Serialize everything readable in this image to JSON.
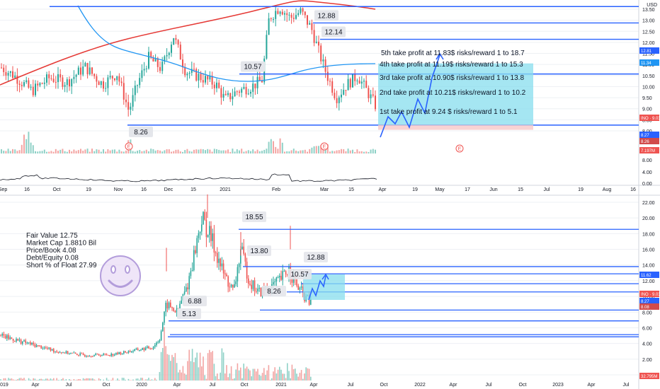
{
  "colors": {
    "up": "#26a69a",
    "down": "#ef5350",
    "level": "#2962ff",
    "ma_red": "#e53935",
    "ma_blue": "#2196f3",
    "box_fill": "#87ddee",
    "box_stop": "#f8c8c8",
    "grid": "#eef0f4",
    "text": "#131722",
    "callout_bg": "#e4e6eb",
    "sticker": "#e4d4f4",
    "sticker_line": "#b39ddb"
  },
  "icons": [
    "smiley-icon",
    "earnings-marker-icon",
    "projected-path-icon"
  ],
  "top": {
    "currency": "USD",
    "price_ticks": [
      "13.50",
      "13.00",
      "12.50",
      "12.00",
      "11.50",
      "11.00",
      "10.50",
      "10.00",
      "9.50",
      "9.00",
      "8.50",
      "8.00"
    ],
    "volume_ticks": [
      "8.00",
      "4.00",
      "0.00"
    ],
    "date_ticks": [
      "Sep",
      "16",
      "Oct",
      "19",
      "Nov",
      "16",
      "Dec",
      "15",
      "2021",
      "Feb",
      "Mar",
      "15",
      "Apr",
      "19",
      "May",
      "17",
      "Jun",
      "15",
      "Jul",
      "19",
      "Aug",
      "16"
    ],
    "current_tags": [
      {
        "label": "12.81",
        "color": "#2962ff"
      },
      {
        "label": "11.34",
        "color": "#2196f3"
      },
      {
        "label": "INO · 9.03",
        "color": "#ef5350"
      },
      {
        "label": "8.27",
        "color": "#2962ff"
      },
      {
        "label": "8.26",
        "color": "#d14b4b"
      },
      {
        "label": "7.197M",
        "color": "#ef5350"
      }
    ],
    "levels": [
      {
        "label": "",
        "value": 13.62
      },
      {
        "label": "12.88",
        "value": 12.88
      },
      {
        "label": "12.14",
        "value": 12.14
      },
      {
        "label": "10.57",
        "value": 10.57
      },
      {
        "label": "8.26",
        "value": 8.26
      }
    ],
    "take_profits": [
      "5th take profit at 11.83$ risks/reward 1 to 18.7",
      "4th take profit at 11.19$ risks/reward 1 to  15.3",
      "3rd take profit at 10.90$ risks/reward 1 to 13.8",
      "2nd take profit at 10.21$ risks/reward 1 to 10.2",
      "1st take profit at 9.24 $ risks/reward 1 to 5.1"
    ],
    "earnings_markers": [
      "E",
      "E",
      "E"
    ]
  },
  "bottom": {
    "price_ticks": [
      "22.00",
      "20.00",
      "18.00",
      "16.00",
      "14.00",
      "12.00",
      "10.00",
      "8.00",
      "6.00",
      "4.00",
      "2.00",
      "0.00"
    ],
    "date_ticks": [
      "2019",
      "Apr",
      "Jul",
      "Oct",
      "2020",
      "Apr",
      "Jul",
      "Oct",
      "2021",
      "Apr",
      "Jul",
      "Oct",
      "2022",
      "Apr",
      "Jul",
      "Oct",
      "2023",
      "Apr",
      "Jul"
    ],
    "current_tags": [
      {
        "label": "11.62",
        "color": "#2962ff"
      },
      {
        "label": "INO · 9.03",
        "color": "#ef5350"
      },
      {
        "label": "8.27",
        "color": "#2962ff"
      },
      {
        "label": "8.08",
        "color": "#d14b4b"
      },
      {
        "label": "32.795M",
        "color": "#ef5350"
      }
    ],
    "levels": [
      {
        "label": "18.55",
        "value": 18.55
      },
      {
        "label": "13.80",
        "value": 13.8
      },
      {
        "label": "12.88",
        "value": 12.88
      },
      {
        "label": "10.57",
        "value": 10.57
      },
      {
        "label": "8.26",
        "value": 8.26
      },
      {
        "label": "6.88",
        "value": 6.88
      },
      {
        "label": "5.13",
        "value": 5.13
      }
    ],
    "fundamentals": [
      "Fair Value 12.75",
      "Market Cap 1.8810 Bil",
      "Price/Book 4.08",
      "Debt/Equity 0.08",
      "Short % of Float 27.99"
    ]
  },
  "chart_data": [
    {
      "type": "candlestick",
      "title": "",
      "series": [
        {
          "name": "INO",
          "values": []
        }
      ],
      "x_range": [
        "Sep 2020",
        "Aug 2021"
      ],
      "ylim": [
        8.0,
        13.7
      ],
      "horizontal_levels": [
        13.62,
        12.88,
        12.14,
        10.57,
        8.26
      ],
      "take_profit_levels": [
        11.83,
        11.19,
        10.9,
        10.21,
        9.24
      ],
      "last_price": 9.03,
      "moving_average_values_at_end": {
        "blue": 11.34
      },
      "grid": true,
      "legend": "none"
    },
    {
      "type": "candlestick",
      "title": "",
      "series": [
        {
          "name": "INO",
          "values": []
        }
      ],
      "x_range": [
        "2019",
        "Jul 2023"
      ],
      "ylim": [
        0,
        22
      ],
      "horizontal_levels": [
        18.55,
        13.8,
        12.88,
        10.57,
        8.26,
        6.88,
        5.13
      ],
      "last_price": 9.03,
      "grid": true,
      "legend": "none"
    }
  ]
}
